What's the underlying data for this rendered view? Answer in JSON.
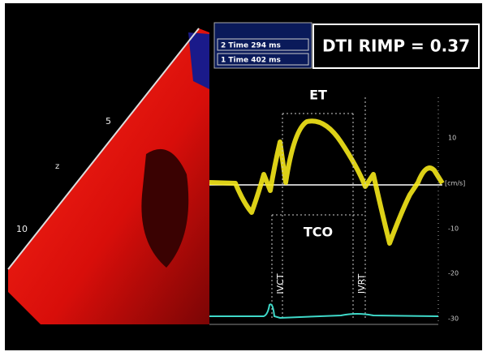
{
  "measurements": [
    "2 Time 294 ms",
    "1 Time 402 ms"
  ],
  "result": "DTI RIMP = 0.37",
  "labels": {
    "et": "ET",
    "tco": "TCO",
    "ivct": "IVCT",
    "ivrt": "IVRT"
  },
  "velocity_scale": {
    "unit": "[cm/s]",
    "ticks": [
      "10",
      "-10",
      "-20",
      "-30"
    ]
  },
  "depth_scale": {
    "axis": "z",
    "ticks": [
      "5",
      "10"
    ]
  }
}
